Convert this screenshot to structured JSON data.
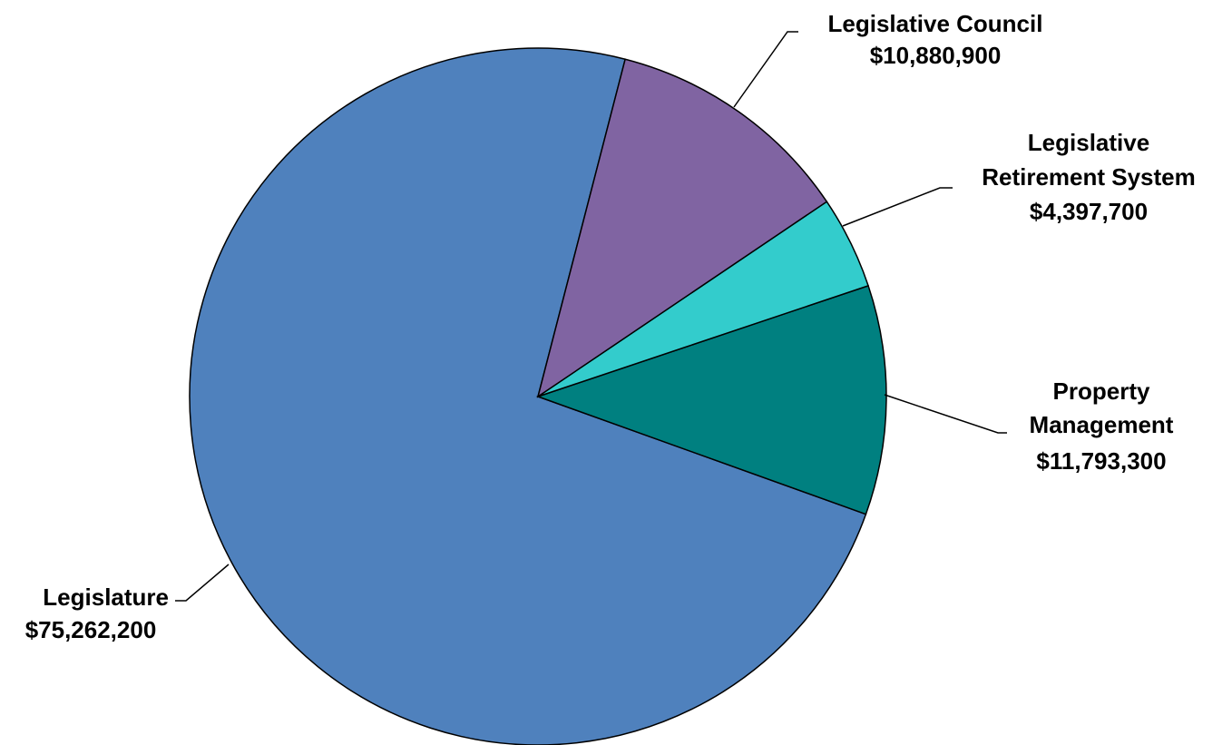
{
  "chart_data": {
    "type": "pie",
    "title": "",
    "slices": [
      {
        "name": "Legislature",
        "value": 75262200,
        "value_label": "$75,262,200",
        "color": "#4f81bd"
      },
      {
        "name": "Legislative Council",
        "value": 10880900,
        "value_label": "$10,880,900",
        "color": "#008080"
      },
      {
        "name": "Legislative Retirement System",
        "value": 4397700,
        "value_label": "$4,397,700",
        "color": "#33cccc"
      },
      {
        "name": "Property Management",
        "value": 11793300,
        "value_label": "$11,793,300",
        "color": "#8064a2"
      }
    ],
    "labels": {
      "legislature": {
        "line1": "Legislature",
        "value": "$75,262,200"
      },
      "council": {
        "line1": "Legislative Council",
        "value": "$10,880,900"
      },
      "retirement": {
        "line1": "Legislative",
        "line2": "Retirement System",
        "value": "$4,397,700"
      },
      "property": {
        "line1": "Property",
        "line2": "Management",
        "value": "$11,793,300"
      }
    },
    "legend": "none"
  }
}
